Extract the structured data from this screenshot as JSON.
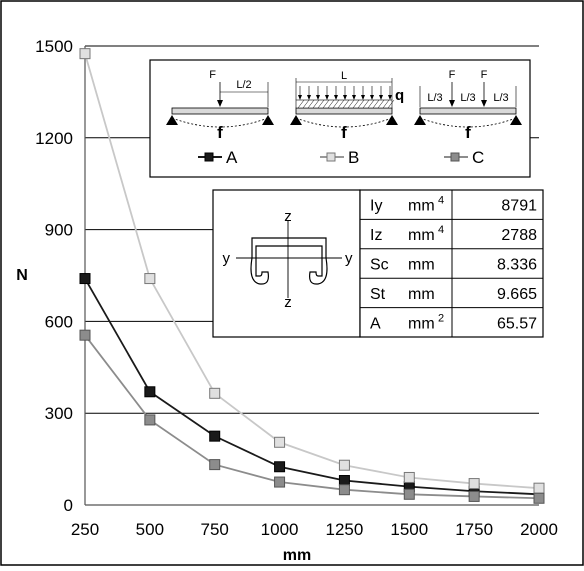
{
  "chart_data": {
    "type": "line",
    "title": "",
    "xlabel": "mm",
    "ylabel": "N",
    "x": [
      250,
      500,
      750,
      1000,
      1250,
      1500,
      1750,
      2000
    ],
    "x_ticks": [
      "250",
      "500",
      "750",
      "1000",
      "1250",
      "1500",
      "1750",
      "2000"
    ],
    "y_ticks": [
      "0",
      "300",
      "600",
      "900",
      "1200",
      "1500"
    ],
    "xlim": [
      250,
      2000
    ],
    "ylim": [
      0,
      1500
    ],
    "grid": "horizontal",
    "series": [
      {
        "name": "A",
        "color": "#1a1a1a",
        "marker": "filled-square",
        "values": [
          740,
          370,
          225,
          125,
          80,
          60,
          45,
          35
        ]
      },
      {
        "name": "B",
        "color": "#c8c8c8",
        "marker": "open-square",
        "values": [
          1475,
          740,
          365,
          205,
          130,
          90,
          70,
          55
        ]
      },
      {
        "name": "C",
        "color": "#8c8c8c",
        "marker": "gray-square",
        "values": [
          555,
          278,
          132,
          75,
          50,
          35,
          28,
          22
        ]
      }
    ],
    "load_cases": {
      "a": {
        "force": "F",
        "dim": "L/2",
        "deflection": "f"
      },
      "b": {
        "span": "L",
        "load": "q",
        "deflection": "f"
      },
      "c": {
        "forces": [
          "F",
          "F"
        ],
        "dims": [
          "L/3",
          "L/3",
          "L/3"
        ],
        "deflection": "f"
      }
    },
    "section": {
      "axis_labels": {
        "z_top": "z",
        "z_bottom": "z",
        "y_left": "y",
        "y_right": "y"
      },
      "properties": [
        {
          "symbol": "Iy",
          "unit": "mm",
          "exp": "4",
          "value": "8791"
        },
        {
          "symbol": "Iz",
          "unit": "mm",
          "exp": "4",
          "value": "2788"
        },
        {
          "symbol": "Sc",
          "unit": "mm",
          "exp": "",
          "value": "8.336"
        },
        {
          "symbol": "St",
          "unit": "mm",
          "exp": "",
          "value": "9.665"
        },
        {
          "symbol": "A",
          "unit": "mm",
          "exp": "2",
          "value": "65.57"
        }
      ]
    }
  },
  "colors": {
    "frame": "#000000",
    "grid": "#000000",
    "axis": "#555555"
  }
}
